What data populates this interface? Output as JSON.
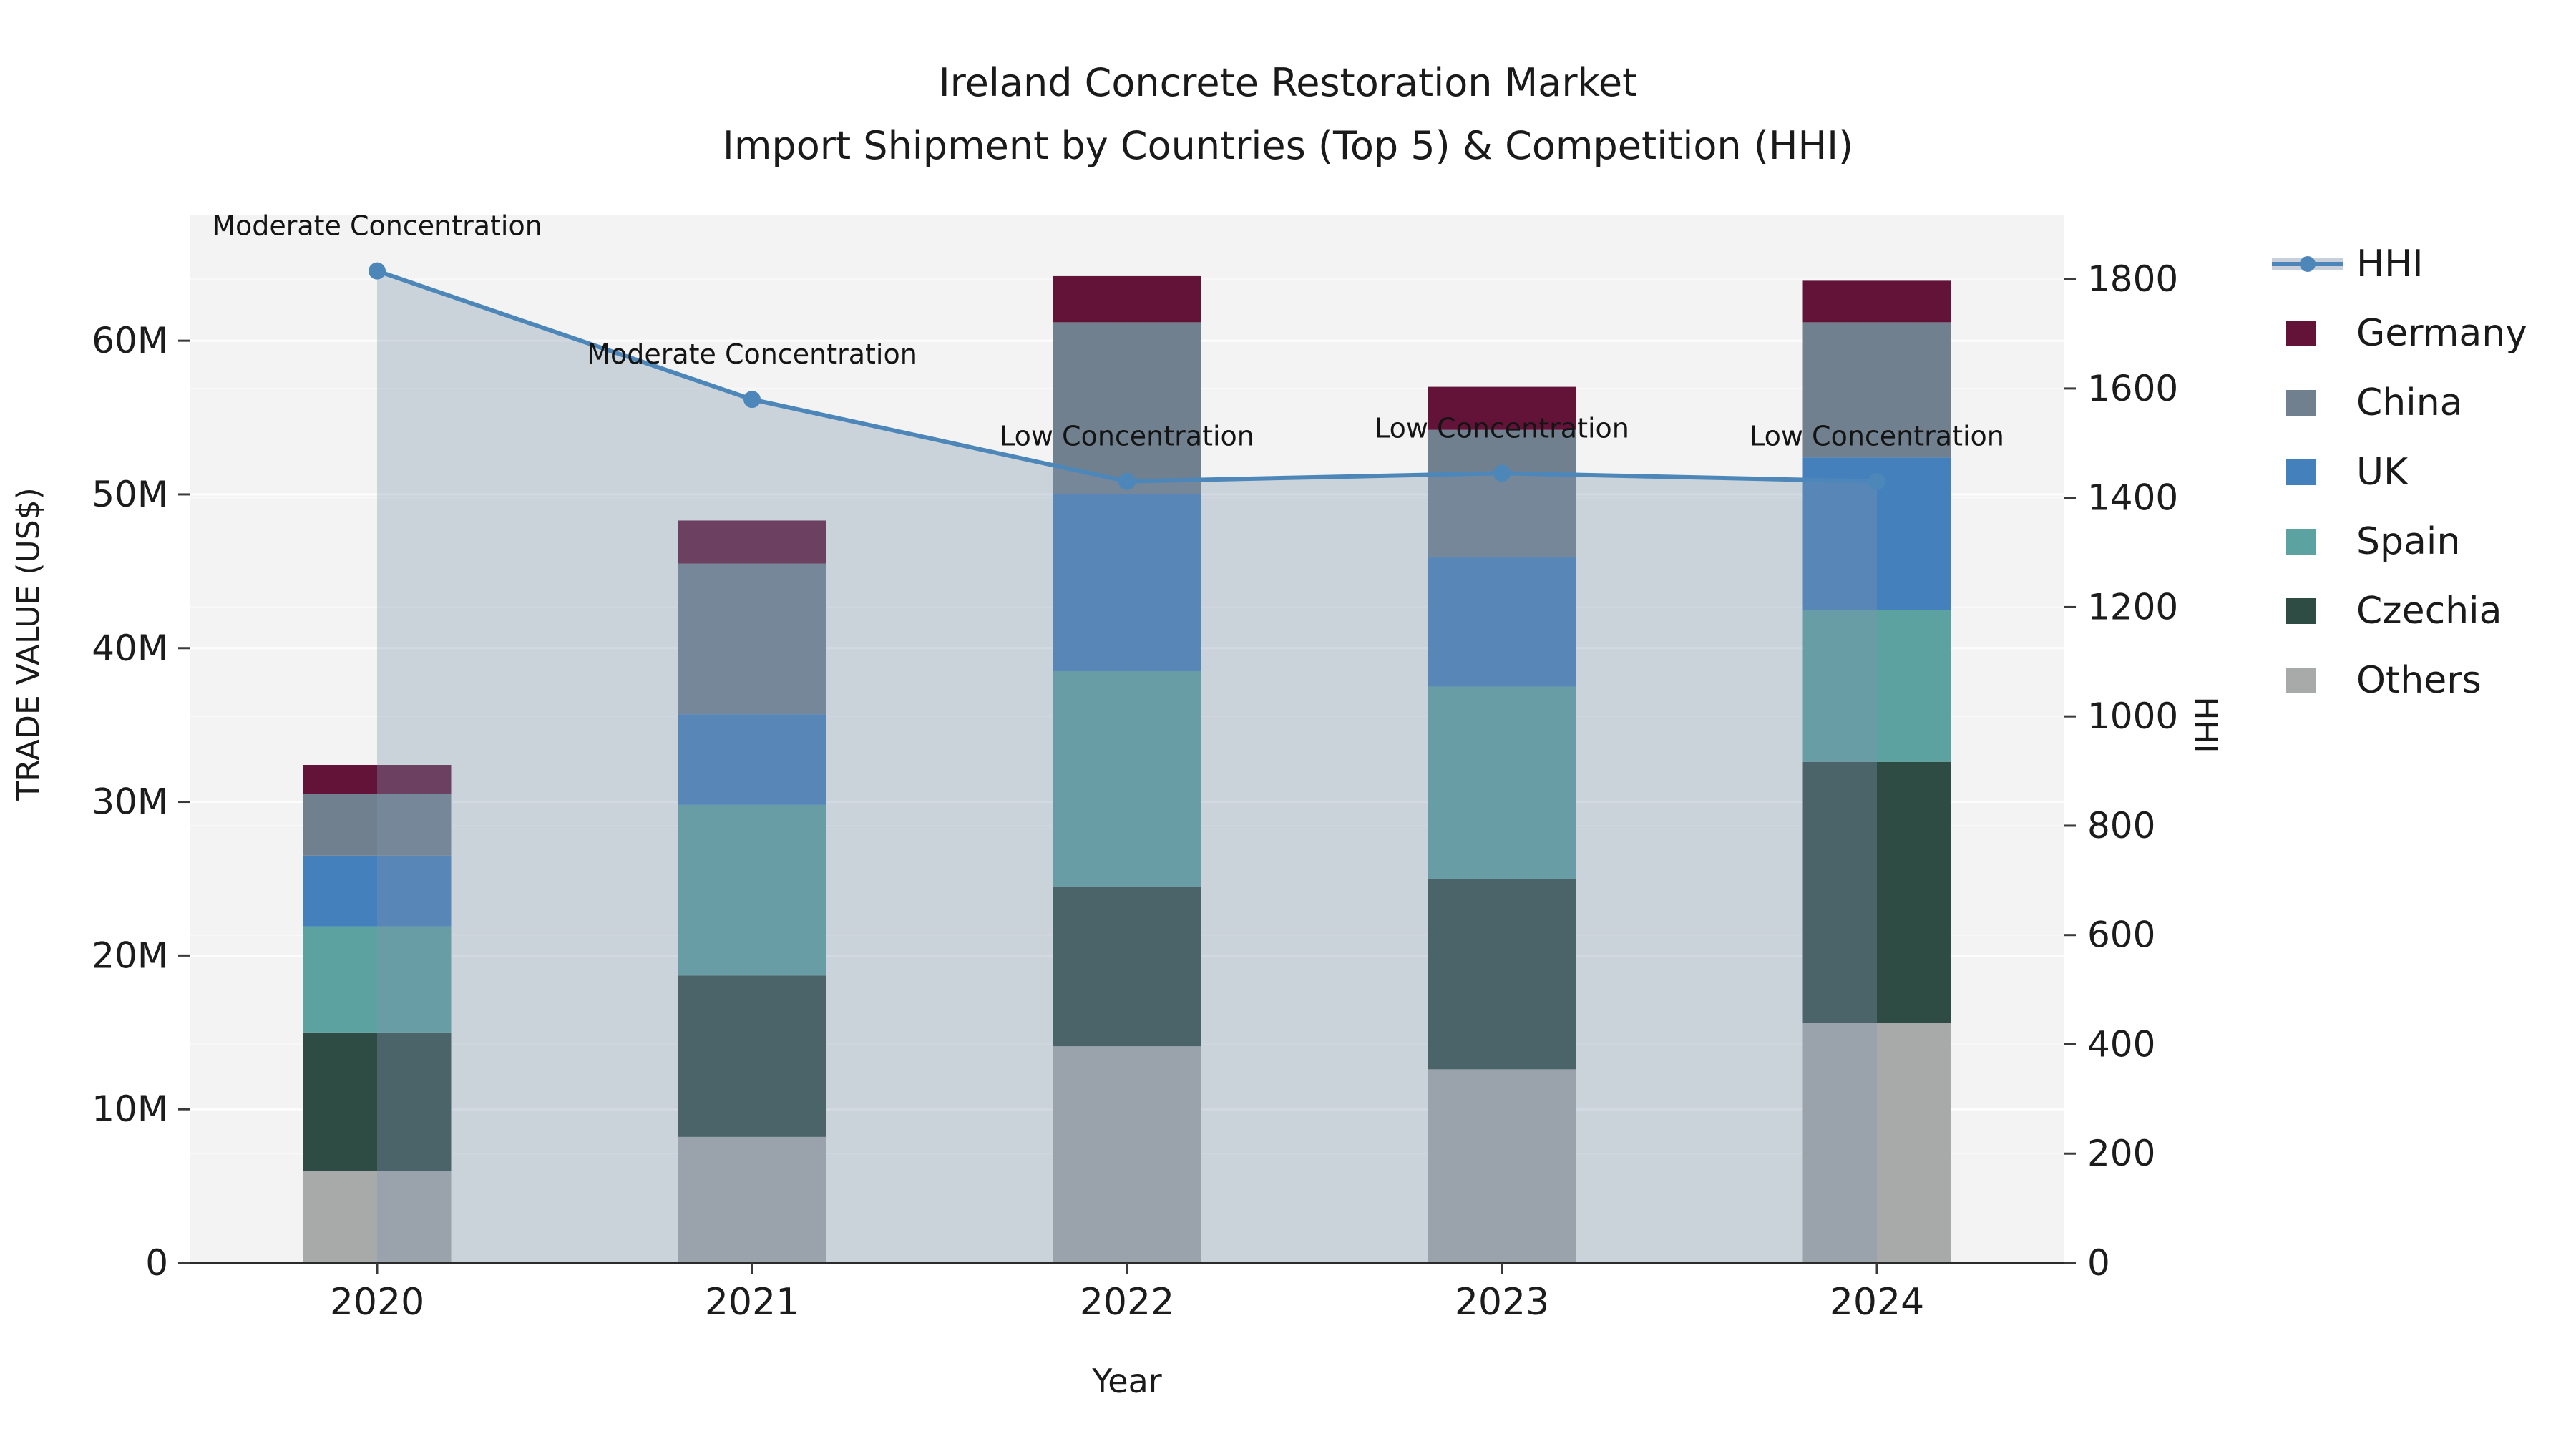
{
  "chart_data": {
    "type": "bar+line",
    "title_line1": "Ireland Concrete Restoration Market",
    "title_line2": "Import Shipment by Countries (Top 5) & Competition (HHI)",
    "xlabel": "Year",
    "ylabel_left": "TRADE VALUE (US$)",
    "ylabel_right": "HHI",
    "categories": [
      "2020",
      "2021",
      "2022",
      "2023",
      "2024"
    ],
    "series": [
      {
        "name": "Germany",
        "color": "#621337",
        "values_musd": [
          1.9,
          2.8,
          3.0,
          2.8,
          2.7
        ]
      },
      {
        "name": "China",
        "color": "#70808F",
        "values_musd": [
          4.0,
          9.8,
          11.2,
          8.3,
          8.8
        ]
      },
      {
        "name": "UK",
        "color": "#4380BC",
        "values_musd": [
          4.6,
          5.9,
          11.5,
          8.4,
          9.9
        ]
      },
      {
        "name": "Spain",
        "color": "#5CA2A1",
        "values_musd": [
          6.9,
          11.1,
          14.0,
          12.5,
          9.9
        ]
      },
      {
        "name": "Czechia",
        "color": "#2E4B44",
        "values_musd": [
          9.0,
          10.5,
          10.4,
          12.4,
          17.0
        ]
      },
      {
        "name": "Others",
        "color": "#A8AAA9",
        "values_musd": [
          6.0,
          8.2,
          14.1,
          12.6,
          15.6
        ]
      }
    ],
    "stack_note": "bars stacked bottom-to-top as Others, Czechia, Spain, UK, China, Germany",
    "line": {
      "name": "HHI",
      "color": "#4D87B9",
      "area_color": "rgba(130,148,175,0.35)",
      "legend_band_color": "#C9D0DA",
      "values": [
        1815,
        1580,
        1430,
        1445,
        1430
      ]
    },
    "annotations": [
      {
        "x": "2020",
        "text": "Moderate Concentration"
      },
      {
        "x": "2021",
        "text": "Moderate Concentration"
      },
      {
        "x": "2022",
        "text": "Low Concentration"
      },
      {
        "x": "2023",
        "text": "Low Concentration"
      },
      {
        "x": "2024",
        "text": "Low Concentration"
      }
    ],
    "left_axis": {
      "tick_labels": [
        "0",
        "10M",
        "20M",
        "30M",
        "40M",
        "50M",
        "60M"
      ],
      "tick_values_musd": [
        0,
        10,
        20,
        30,
        40,
        50,
        60
      ],
      "ylim_musd": [
        0,
        68.2
      ]
    },
    "right_axis": {
      "tick_labels": [
        "0",
        "200",
        "400",
        "600",
        "800",
        "1000",
        "1200",
        "1400",
        "1600",
        "1800"
      ],
      "tick_values": [
        0,
        200,
        400,
        600,
        800,
        1000,
        1200,
        1400,
        1600,
        1800
      ],
      "ylim": [
        0,
        1918
      ]
    },
    "legend_order": [
      "HHI",
      "Germany",
      "China",
      "UK",
      "Spain",
      "Czechia",
      "Others"
    ],
    "legend_position": "outside-right-top",
    "grid": true,
    "plot_bg": "#F2F3F2",
    "bar_width_frac": 0.395
  }
}
